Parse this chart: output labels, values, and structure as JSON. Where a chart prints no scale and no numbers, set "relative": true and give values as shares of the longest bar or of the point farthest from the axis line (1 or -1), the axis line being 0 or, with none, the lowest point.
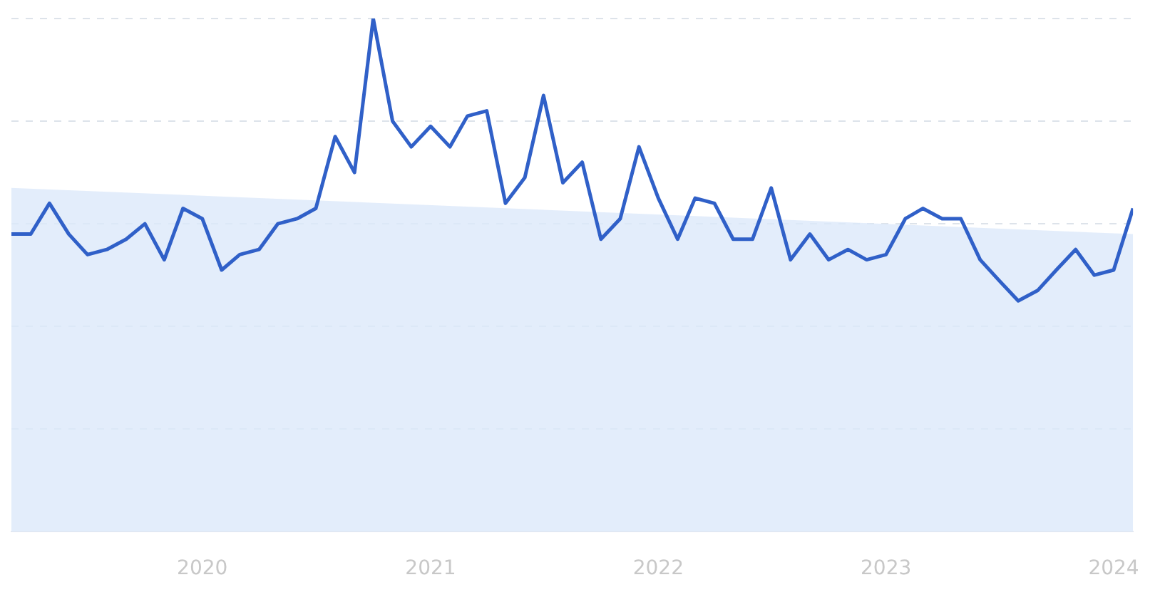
{
  "chart_data": {
    "type": "line",
    "relative": true,
    "grid": "y",
    "x": [
      "2019-03",
      "2019-04",
      "2019-05",
      "2019-06",
      "2019-07",
      "2019-08",
      "2019-09",
      "2019-10",
      "2019-11",
      "2019-12",
      "2020-01",
      "2020-02",
      "2020-03",
      "2020-04",
      "2020-05",
      "2020-06",
      "2020-07",
      "2020-08",
      "2020-09",
      "2020-10",
      "2020-11",
      "2020-12",
      "2021-01",
      "2021-02",
      "2021-03",
      "2021-04",
      "2021-05",
      "2021-06",
      "2021-07",
      "2021-08",
      "2021-09",
      "2021-10",
      "2021-11",
      "2021-12",
      "2022-01",
      "2022-02",
      "2022-03",
      "2022-04",
      "2022-05",
      "2022-06",
      "2022-07",
      "2022-08",
      "2022-09",
      "2022-10",
      "2022-11",
      "2022-12",
      "2023-01",
      "2023-02",
      "2023-03",
      "2023-04",
      "2023-05",
      "2023-06",
      "2023-07",
      "2023-08",
      "2023-09",
      "2023-10",
      "2023-11",
      "2023-12",
      "2024-01",
      "2024-02"
    ],
    "xlim": [
      "2019-03",
      "2024-02"
    ],
    "xticks": [
      {
        "value": "2020-01",
        "label": "2020"
      },
      {
        "value": "2021-01",
        "label": "2021"
      },
      {
        "value": "2022-01",
        "label": "2022"
      },
      {
        "value": "2023-01",
        "label": "2023"
      },
      {
        "value": "2024-01",
        "label": "2024"
      }
    ],
    "series": [
      {
        "type": "area",
        "color": "#dce9fa",
        "x": [
          "2019-03",
          "2024-02"
        ],
        "values": [
          0.67,
          0.58
        ]
      },
      {
        "type": "line",
        "color": "#3060c8",
        "values": [
          0.58,
          0.58,
          0.64,
          0.58,
          0.54,
          0.55,
          0.57,
          0.6,
          0.53,
          0.63,
          0.61,
          0.51,
          0.54,
          0.55,
          0.6,
          0.61,
          0.63,
          0.77,
          0.7,
          1,
          0.8,
          0.75,
          0.79,
          0.75,
          0.81,
          0.82,
          0.64,
          0.69,
          0.85,
          0.68,
          0.72,
          0.57,
          0.61,
          0.75,
          0.65,
          0.57,
          0.65,
          0.64,
          0.57,
          0.57,
          0.67,
          0.53,
          0.58,
          0.53,
          0.55,
          0.53,
          0.54,
          0.61,
          0.63,
          0.61,
          0.61,
          0.53,
          0.49,
          0.45,
          0.47,
          0.51,
          0.55,
          0.5,
          0.51,
          0.63
        ]
      }
    ]
  }
}
